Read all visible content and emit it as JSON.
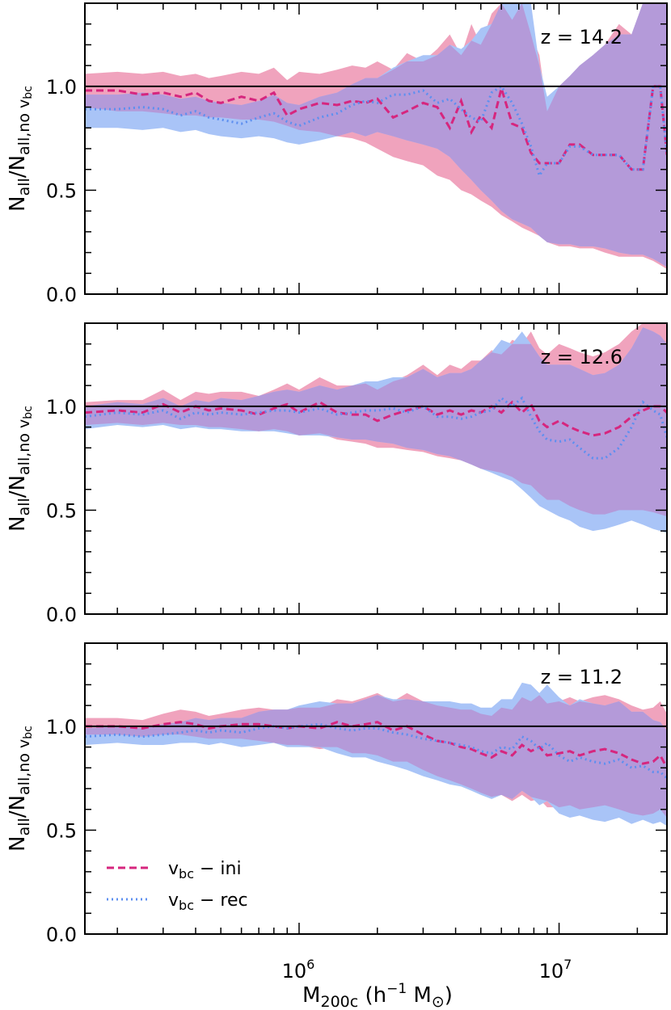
{
  "figure": {
    "xlabel_main": "M",
    "xlabel_sub": "200c",
    "xlabel_rest": " (h",
    "xlabel_sup": "−1",
    "xlabel_unit": " M",
    "xlabel_sun": "⊙",
    "xlabel_close": ")",
    "ylabel_main": "N",
    "ylabel_sub1": "all",
    "ylabel_slash": "/N",
    "ylabel_sub2": "all,no v",
    "ylabel_sub3": "bc",
    "legend": {
      "ini": {
        "v": "v",
        "sub": "bc",
        "rest": " − ini"
      },
      "rec": {
        "v": "v",
        "sub": "bc",
        "rest": " − rec"
      }
    },
    "colors": {
      "ini_line": "#d6267e",
      "rec_line": "#5d8ff0",
      "ini_band": "#f0a3bd",
      "rec_band": "#a9c4f7",
      "overlap_band": "#b49ad9",
      "reference_line": "#000000"
    },
    "x_tick_labels": {
      "1e6": {
        "base": "10",
        "exp": "6"
      },
      "1e7": {
        "base": "10",
        "exp": "7"
      }
    },
    "y_tick_labels": [
      "0.0",
      "0.5",
      "1.0"
    ]
  },
  "chart_data": [
    {
      "type": "line",
      "panel": "z = 14.2",
      "annotation": "z = 14.2",
      "xscale": "log",
      "xlim": [
        150000,
        26000000
      ],
      "ylim": [
        0,
        1.4
      ],
      "reference_y": 1.0,
      "x": [
        150000,
        200000,
        250000,
        300000,
        350000,
        400000,
        450000,
        500000,
        600000,
        700000,
        800000,
        900000,
        1000000,
        1200000,
        1400000,
        1600000,
        1800000,
        2000000,
        2300000,
        2600000,
        3000000,
        3400000,
        3800000,
        4200000,
        4600000,
        5000000,
        5500000,
        6000000,
        6600000,
        7200000,
        7800000,
        8400000,
        9000000,
        10000000,
        11000000,
        12000000,
        13500000,
        15000000,
        17000000,
        19000000,
        21000000,
        23000000,
        24500000,
        26000000
      ],
      "series": [
        {
          "name": "v_bc - ini",
          "y": [
            0.98,
            0.98,
            0.96,
            0.97,
            0.95,
            0.97,
            0.93,
            0.92,
            0.95,
            0.93,
            0.97,
            0.86,
            0.89,
            0.92,
            0.91,
            0.93,
            0.92,
            0.94,
            0.85,
            0.88,
            0.92,
            0.9,
            0.8,
            0.93,
            0.78,
            0.86,
            0.8,
            0.99,
            0.82,
            0.8,
            0.68,
            0.63,
            0.63,
            0.63,
            0.72,
            0.72,
            0.67,
            0.67,
            0.67,
            0.6,
            0.6,
            1.0,
            1.0,
            0.67
          ],
          "lower": [
            0.9,
            0.88,
            0.88,
            0.87,
            0.86,
            0.86,
            0.85,
            0.85,
            0.84,
            0.84,
            0.83,
            0.81,
            0.79,
            0.78,
            0.76,
            0.75,
            0.73,
            0.7,
            0.66,
            0.64,
            0.62,
            0.57,
            0.55,
            0.5,
            0.48,
            0.45,
            0.42,
            0.38,
            0.35,
            0.32,
            0.3,
            0.28,
            0.25,
            0.23,
            0.23,
            0.22,
            0.22,
            0.2,
            0.18,
            0.18,
            0.18,
            0.16,
            0.14,
            0.12
          ],
          "upper": [
            1.06,
            1.07,
            1.06,
            1.07,
            1.05,
            1.06,
            1.04,
            1.05,
            1.07,
            1.06,
            1.09,
            1.03,
            1.07,
            1.06,
            1.08,
            1.1,
            1.09,
            1.12,
            1.08,
            1.16,
            1.12,
            1.18,
            1.25,
            1.15,
            1.3,
            1.2,
            1.35,
            1.4,
            1.32,
            1.4,
            1.25,
            1.15,
            0.88,
            1.0,
            1.05,
            1.1,
            1.15,
            1.2,
            1.3,
            1.25,
            1.4,
            1.4,
            1.4,
            1.4
          ]
        },
        {
          "name": "v_bc - rec",
          "y": [
            0.89,
            0.89,
            0.9,
            0.89,
            0.86,
            0.88,
            0.85,
            0.84,
            0.82,
            0.85,
            0.87,
            0.83,
            0.81,
            0.85,
            0.87,
            0.91,
            0.93,
            0.92,
            0.96,
            0.96,
            0.98,
            0.92,
            0.94,
            0.89,
            0.85,
            0.83,
            0.97,
            1.0,
            0.92,
            0.82,
            0.71,
            0.57,
            0.63,
            0.63,
            0.71,
            0.71,
            0.67,
            0.67,
            0.67,
            0.6,
            0.6,
            1.0,
            1.0,
            0.67
          ],
          "lower": [
            0.8,
            0.8,
            0.79,
            0.8,
            0.78,
            0.79,
            0.77,
            0.76,
            0.75,
            0.76,
            0.75,
            0.73,
            0.72,
            0.74,
            0.76,
            0.78,
            0.76,
            0.78,
            0.76,
            0.74,
            0.72,
            0.7,
            0.66,
            0.6,
            0.55,
            0.5,
            0.45,
            0.4,
            0.36,
            0.34,
            0.32,
            0.28,
            0.25,
            0.24,
            0.24,
            0.23,
            0.23,
            0.22,
            0.2,
            0.19,
            0.19,
            0.17,
            0.15,
            0.13
          ],
          "upper": [
            0.96,
            0.96,
            0.97,
            0.96,
            0.94,
            0.95,
            0.93,
            0.92,
            0.91,
            0.93,
            0.96,
            0.92,
            0.91,
            0.95,
            0.97,
            1.01,
            1.04,
            1.04,
            1.09,
            1.12,
            1.15,
            1.15,
            1.2,
            1.18,
            1.22,
            1.28,
            1.3,
            1.4,
            1.4,
            1.4,
            1.4,
            1.1,
            0.95,
            1.0,
            1.05,
            1.1,
            1.15,
            1.2,
            1.25,
            1.25,
            1.4,
            1.4,
            1.4,
            1.4
          ]
        }
      ]
    },
    {
      "type": "line",
      "panel": "z = 12.6",
      "annotation": "z = 12.6",
      "xscale": "log",
      "xlim": [
        150000,
        26000000
      ],
      "ylim": [
        0,
        1.4
      ],
      "reference_y": 1.0,
      "x": [
        150000,
        200000,
        250000,
        300000,
        350000,
        400000,
        450000,
        500000,
        600000,
        700000,
        800000,
        900000,
        1000000,
        1200000,
        1400000,
        1600000,
        1800000,
        2000000,
        2300000,
        2600000,
        3000000,
        3400000,
        3800000,
        4200000,
        4600000,
        5000000,
        5500000,
        6000000,
        6600000,
        7200000,
        7800000,
        8400000,
        9000000,
        10000000,
        11000000,
        12000000,
        13500000,
        15000000,
        17000000,
        19000000,
        21000000,
        23000000,
        24500000,
        26000000
      ],
      "series": [
        {
          "name": "v_bc - ini",
          "y": [
            0.97,
            0.98,
            0.97,
            1.01,
            0.97,
            1.0,
            0.98,
            0.99,
            0.98,
            0.96,
            0.99,
            1.01,
            0.97,
            1.02,
            0.97,
            0.96,
            0.96,
            0.93,
            0.96,
            0.98,
            1.0,
            0.96,
            0.98,
            0.96,
            0.98,
            0.97,
            1.0,
            0.97,
            1.02,
            0.97,
            1.01,
            0.93,
            0.9,
            0.93,
            0.9,
            0.88,
            0.86,
            0.87,
            0.9,
            0.95,
            0.98,
            1.0,
            1.0,
            0.97
          ],
          "lower": [
            0.91,
            0.92,
            0.91,
            0.92,
            0.91,
            0.91,
            0.9,
            0.9,
            0.89,
            0.88,
            0.89,
            0.88,
            0.86,
            0.87,
            0.84,
            0.83,
            0.82,
            0.8,
            0.8,
            0.79,
            0.78,
            0.76,
            0.75,
            0.74,
            0.72,
            0.7,
            0.69,
            0.68,
            0.66,
            0.63,
            0.62,
            0.58,
            0.55,
            0.55,
            0.52,
            0.5,
            0.48,
            0.48,
            0.5,
            0.5,
            0.5,
            0.49,
            0.48,
            0.47
          ],
          "upper": [
            1.02,
            1.03,
            1.03,
            1.08,
            1.03,
            1.07,
            1.06,
            1.07,
            1.07,
            1.05,
            1.08,
            1.11,
            1.08,
            1.14,
            1.1,
            1.1,
            1.11,
            1.08,
            1.12,
            1.15,
            1.2,
            1.15,
            1.2,
            1.18,
            1.22,
            1.22,
            1.27,
            1.25,
            1.32,
            1.3,
            1.36,
            1.28,
            1.25,
            1.3,
            1.28,
            1.26,
            1.24,
            1.26,
            1.3,
            1.36,
            1.4,
            1.4,
            1.4,
            1.4
          ]
        },
        {
          "name": "v_bc - rec",
          "y": [
            0.95,
            0.97,
            0.96,
            0.98,
            0.94,
            0.97,
            0.96,
            0.97,
            0.96,
            0.97,
            0.98,
            0.98,
            0.97,
            0.99,
            0.96,
            0.97,
            0.98,
            0.98,
            0.99,
            0.97,
            1.0,
            0.95,
            0.95,
            0.94,
            0.95,
            0.97,
            0.98,
            1.04,
            1.0,
            1.04,
            0.95,
            0.88,
            0.84,
            0.83,
            0.84,
            0.8,
            0.75,
            0.75,
            0.8,
            0.9,
            1.02,
            0.98,
            0.96,
            0.85
          ],
          "lower": [
            0.89,
            0.91,
            0.9,
            0.91,
            0.89,
            0.9,
            0.89,
            0.89,
            0.88,
            0.88,
            0.88,
            0.87,
            0.86,
            0.86,
            0.85,
            0.84,
            0.84,
            0.83,
            0.82,
            0.8,
            0.79,
            0.77,
            0.76,
            0.74,
            0.72,
            0.7,
            0.68,
            0.66,
            0.64,
            0.6,
            0.56,
            0.52,
            0.5,
            0.47,
            0.45,
            0.42,
            0.4,
            0.41,
            0.43,
            0.45,
            0.43,
            0.41,
            0.4,
            0.39
          ],
          "upper": [
            1.0,
            1.02,
            1.01,
            1.04,
            1.0,
            1.03,
            1.02,
            1.04,
            1.03,
            1.05,
            1.07,
            1.08,
            1.07,
            1.1,
            1.08,
            1.1,
            1.12,
            1.12,
            1.14,
            1.14,
            1.18,
            1.14,
            1.16,
            1.16,
            1.18,
            1.22,
            1.26,
            1.32,
            1.3,
            1.36,
            1.3,
            1.24,
            1.2,
            1.2,
            1.2,
            1.18,
            1.15,
            1.16,
            1.2,
            1.28,
            1.38,
            1.36,
            1.34,
            1.3
          ]
        }
      ]
    },
    {
      "type": "line",
      "panel": "z = 11.2",
      "annotation": "z = 11.2",
      "xscale": "log",
      "xlim": [
        150000,
        26000000
      ],
      "ylim": [
        0,
        1.4
      ],
      "reference_y": 1.0,
      "x": [
        150000,
        200000,
        250000,
        300000,
        350000,
        400000,
        450000,
        500000,
        600000,
        700000,
        800000,
        900000,
        1000000,
        1200000,
        1400000,
        1600000,
        1800000,
        2000000,
        2300000,
        2600000,
        3000000,
        3400000,
        3800000,
        4200000,
        4600000,
        5000000,
        5500000,
        6000000,
        6600000,
        7200000,
        7800000,
        8400000,
        9000000,
        10000000,
        11000000,
        12000000,
        13500000,
        15000000,
        17000000,
        19000000,
        21000000,
        23000000,
        24500000,
        26000000
      ],
      "series": [
        {
          "name": "v_bc - ini",
          "y": [
            1.0,
            1.0,
            0.99,
            1.01,
            1.02,
            1.01,
            0.99,
            1.0,
            1.01,
            1.01,
            1.0,
            0.99,
            1.0,
            0.99,
            1.02,
            1.0,
            1.01,
            1.02,
            0.98,
            1.0,
            0.96,
            0.93,
            0.92,
            0.9,
            0.89,
            0.87,
            0.85,
            0.88,
            0.86,
            0.91,
            0.88,
            0.9,
            0.86,
            0.87,
            0.88,
            0.86,
            0.88,
            0.89,
            0.87,
            0.84,
            0.82,
            0.83,
            0.86,
            0.8
          ],
          "lower": [
            0.96,
            0.96,
            0.95,
            0.96,
            0.96,
            0.95,
            0.94,
            0.94,
            0.94,
            0.93,
            0.92,
            0.91,
            0.91,
            0.89,
            0.9,
            0.87,
            0.87,
            0.86,
            0.83,
            0.83,
            0.79,
            0.76,
            0.74,
            0.72,
            0.7,
            0.68,
            0.66,
            0.67,
            0.64,
            0.67,
            0.64,
            0.65,
            0.61,
            0.61,
            0.62,
            0.6,
            0.61,
            0.62,
            0.6,
            0.58,
            0.57,
            0.58,
            0.6,
            0.56
          ],
          "upper": [
            1.04,
            1.04,
            1.03,
            1.06,
            1.08,
            1.07,
            1.05,
            1.06,
            1.08,
            1.09,
            1.08,
            1.08,
            1.09,
            1.09,
            1.13,
            1.12,
            1.14,
            1.16,
            1.12,
            1.16,
            1.12,
            1.1,
            1.09,
            1.08,
            1.08,
            1.06,
            1.05,
            1.09,
            1.08,
            1.14,
            1.12,
            1.15,
            1.11,
            1.12,
            1.14,
            1.12,
            1.14,
            1.15,
            1.13,
            1.1,
            1.08,
            1.09,
            1.12,
            1.06
          ]
        },
        {
          "name": "v_bc - rec",
          "y": [
            0.95,
            0.96,
            0.95,
            0.96,
            0.97,
            0.98,
            0.97,
            0.98,
            0.97,
            0.99,
            1.0,
            0.99,
            1.0,
            1.01,
            0.99,
            0.98,
            0.99,
            0.99,
            0.97,
            0.96,
            0.94,
            0.93,
            0.92,
            0.91,
            0.9,
            0.88,
            0.87,
            0.9,
            0.89,
            0.95,
            0.93,
            0.89,
            0.92,
            0.86,
            0.83,
            0.85,
            0.83,
            0.82,
            0.84,
            0.8,
            0.81,
            0.78,
            0.78,
            0.75
          ],
          "lower": [
            0.91,
            0.92,
            0.91,
            0.91,
            0.92,
            0.92,
            0.91,
            0.92,
            0.9,
            0.91,
            0.92,
            0.9,
            0.9,
            0.9,
            0.87,
            0.85,
            0.85,
            0.83,
            0.81,
            0.79,
            0.76,
            0.74,
            0.72,
            0.71,
            0.69,
            0.67,
            0.65,
            0.67,
            0.65,
            0.69,
            0.66,
            0.62,
            0.64,
            0.58,
            0.56,
            0.57,
            0.55,
            0.54,
            0.56,
            0.53,
            0.55,
            0.53,
            0.54,
            0.52
          ],
          "upper": [
            0.99,
            1.0,
            0.99,
            1.01,
            1.02,
            1.04,
            1.03,
            1.04,
            1.04,
            1.07,
            1.08,
            1.08,
            1.1,
            1.12,
            1.11,
            1.11,
            1.13,
            1.15,
            1.13,
            1.13,
            1.12,
            1.12,
            1.12,
            1.11,
            1.11,
            1.09,
            1.09,
            1.13,
            1.13,
            1.21,
            1.2,
            1.16,
            1.2,
            1.14,
            1.1,
            1.13,
            1.11,
            1.1,
            1.12,
            1.07,
            1.07,
            1.03,
            1.02,
            0.98
          ]
        }
      ]
    }
  ]
}
